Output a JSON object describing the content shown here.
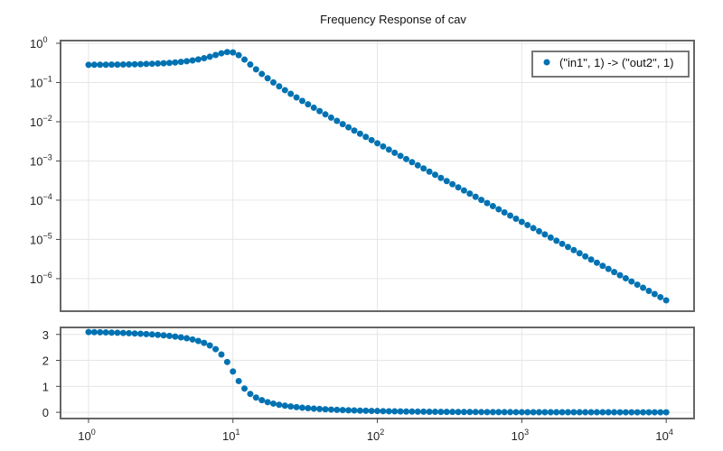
{
  "chart_data": [
    {
      "type": "scatter",
      "panel": "magnitude",
      "title": "Frequency Response of cav",
      "xlabel": "",
      "ylabel": "",
      "xscale": "log",
      "yscale": "log",
      "xlim": [
        0.64,
        15600
      ],
      "ylim": [
        1.48e-07,
        1.17
      ],
      "grid": true,
      "legend_position": "top-right",
      "x_ticks": [
        {
          "base": "10",
          "exp": "0",
          "value": 1
        },
        {
          "base": "10",
          "exp": "1",
          "value": 10
        },
        {
          "base": "10",
          "exp": "2",
          "value": 100
        },
        {
          "base": "10",
          "exp": "3",
          "value": 1000
        },
        {
          "base": "10",
          "exp": "4",
          "value": 10000
        }
      ],
      "y_ticks": [
        {
          "base": "10",
          "exp": "0",
          "value": 1
        },
        {
          "base": "10",
          "exp": "−1",
          "value": 0.1
        },
        {
          "base": "10",
          "exp": "−2",
          "value": 0.01
        },
        {
          "base": "10",
          "exp": "−3",
          "value": 0.001
        },
        {
          "base": "10",
          "exp": "−4",
          "value": 0.0001
        },
        {
          "base": "10",
          "exp": "−5",
          "value": 1e-05
        },
        {
          "base": "10",
          "exp": "−6",
          "value": 1e-06
        }
      ],
      "series": [
        {
          "name": "(\"in1\", 1) -> (\"out2\", 1)",
          "color": "#0072b2",
          "x": [
            1,
            1.096,
            1.202,
            1.318,
            1.445,
            1.585,
            1.738,
            1.905,
            2.089,
            2.291,
            2.512,
            2.754,
            3.02,
            3.311,
            3.631,
            3.981,
            4.365,
            4.786,
            5.248,
            5.754,
            6.31,
            6.918,
            7.586,
            8.318,
            9.12,
            10,
            10.96,
            12.02,
            13.18,
            14.45,
            15.85,
            17.38,
            19.05,
            20.89,
            22.91,
            25.12,
            27.54,
            30.2,
            33.11,
            36.31,
            39.81,
            43.65,
            47.86,
            52.48,
            57.54,
            63.1,
            69.18,
            75.86,
            83.18,
            91.2,
            100,
            109.6,
            120.2,
            131.8,
            144.5,
            158.5,
            173.8,
            190.5,
            208.9,
            229.1,
            251.2,
            275.4,
            302.0,
            331.1,
            363.1,
            398.1,
            436.5,
            478.6,
            524.8,
            575.4,
            631.0,
            691.8,
            758.6,
            831.8,
            912.0,
            1000,
            1096,
            1202,
            1318,
            1445,
            1585,
            1738,
            1905,
            2089,
            2291,
            2512,
            2754,
            3020,
            3311,
            3631,
            3981,
            4365,
            4786,
            5248,
            5754,
            6310,
            6918,
            7586,
            8318,
            9120,
            10000
          ],
          "y": [
            0.2825,
            0.283,
            0.2836,
            0.2844,
            0.2853,
            0.2863,
            0.2877,
            0.2892,
            0.2912,
            0.2935,
            0.2964,
            0.2999,
            0.3043,
            0.3096,
            0.3162,
            0.3245,
            0.3349,
            0.3481,
            0.365,
            0.3869,
            0.4156,
            0.453,
            0.5006,
            0.5552,
            0.597,
            0.5833,
            0.4966,
            0.3841,
            0.2881,
            0.2168,
            0.1655,
            0.1281,
            0.1005,
            0.07975,
            0.06382,
            0.05143,
            0.04168,
            0.03395,
            0.02775,
            0.02275,
            0.0187,
            0.0154,
            0.01271,
            0.0105,
            0.008689,
            0.007192,
            0.005961,
            0.004942,
            0.004099,
            0.003402,
            0.002825,
            0.002346,
            0.001949,
            0.001619,
            0.001346,
            0.001119,
            0.0009299,
            0.0007731,
            0.0006428,
            0.0005344,
            0.0004444,
            0.0003696,
            0.0003073,
            0.0002556,
            0.0002125,
            0.0001768,
            0.000147,
            0.0001223,
            0.0001017,
            8.46e-05,
            7.04e-05,
            5.85e-05,
            4.866e-05,
            4.047e-05,
            3.366e-05,
            2.8e-05,
            2.329e-05,
            1.937e-05,
            1.611e-05,
            1.34e-05,
            1.115e-05,
            9.27e-06,
            7.71e-06,
            6.41e-06,
            5.33e-06,
            4.44e-06,
            3.69e-06,
            3.07e-06,
            2.55e-06,
            2.12e-06,
            1.77e-06,
            1.47e-06,
            1.22e-06,
            1.02e-06,
            8.46e-07,
            7.03e-07,
            5.85e-07,
            4.87e-07,
            4.05e-07,
            3.37e-07,
            2.8e-07
          ]
        }
      ]
    },
    {
      "type": "scatter",
      "panel": "phase",
      "xlabel": "",
      "ylabel": "",
      "xscale": "log",
      "yscale": "linear",
      "xlim": [
        0.64,
        15600
      ],
      "ylim": [
        -0.24,
        3.27
      ],
      "grid": true,
      "x_ticks": [
        {
          "base": "10",
          "exp": "0",
          "value": 1
        },
        {
          "base": "10",
          "exp": "1",
          "value": 10
        },
        {
          "base": "10",
          "exp": "2",
          "value": 100
        },
        {
          "base": "10",
          "exp": "3",
          "value": 1000
        },
        {
          "base": "10",
          "exp": "4",
          "value": 10000
        }
      ],
      "y_ticks": [
        {
          "label": "0",
          "value": 0
        },
        {
          "label": "1",
          "value": 1
        },
        {
          "label": "2",
          "value": 2
        },
        {
          "label": "3",
          "value": 3
        }
      ],
      "series": [
        {
          "color": "#0072b2",
          "x_same_as_magnitude": true,
          "y": [
            3.093,
            3.088,
            3.083,
            3.077,
            3.071,
            3.064,
            3.056,
            3.047,
            3.037,
            3.026,
            3.014,
            2.999,
            2.983,
            2.965,
            2.943,
            2.918,
            2.888,
            2.852,
            2.807,
            2.75,
            2.675,
            2.574,
            2.433,
            2.228,
            1.938,
            1.571,
            1.204,
            0.914,
            0.709,
            0.568,
            0.467,
            0.392,
            0.335,
            0.29,
            0.254,
            0.224,
            0.199,
            0.177,
            0.159,
            0.143,
            0.128,
            0.116,
            0.105,
            0.095,
            0.086,
            0.078,
            0.071,
            0.065,
            0.059,
            0.053,
            0.049,
            0.0438,
            0.0399,
            0.0364,
            0.0332,
            0.0303,
            0.0276,
            0.0252,
            0.023,
            0.0209,
            0.0191,
            0.0174,
            0.0159,
            0.0145,
            0.0132,
            0.012,
            0.011,
            0.01,
            0.0091,
            0.0083,
            0.0076,
            0.0069,
            0.0063,
            0.0058,
            0.0053,
            0.0048,
            0.0044,
            0.004,
            0.0036,
            0.0033,
            0.003,
            0.0028,
            0.0025,
            0.0023,
            0.0021,
            0.0019,
            0.0017,
            0.0016,
            0.0015,
            0.0013,
            0.0012,
            0.0011,
            0.001,
            0.0009,
            0.0008,
            0.0008,
            0.0007,
            0.0006,
            0.0006,
            0.0005,
            0.0005
          ]
        }
      ]
    }
  ]
}
